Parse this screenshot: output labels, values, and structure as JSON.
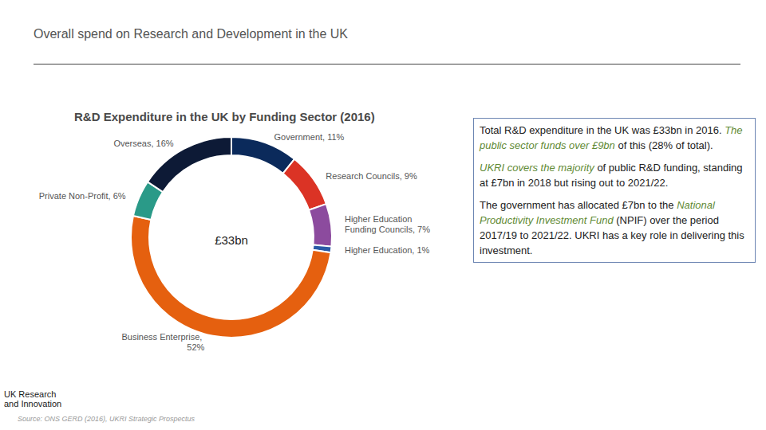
{
  "header": {
    "title": "Overall spend on Research and Development in the UK"
  },
  "chart_data": {
    "type": "pie",
    "donut": true,
    "title": "R&D Expenditure in the UK by Funding Sector (2016)",
    "center_label": "£33bn",
    "categories": [
      "Government",
      "Research Councils",
      "Higher Education Funding Councils",
      "Higher Education",
      "Business Enterprise",
      "Private Non-Profit",
      "Overseas"
    ],
    "values": [
      11,
      9,
      7,
      1,
      52,
      6,
      16
    ],
    "value_labels": [
      "Government, 11%",
      "Research Councils, 9%",
      "Higher Education Funding Councils, 7%",
      "Higher Education, 1%",
      "Business Enterprise, 52%",
      "Private Non-Profit, 6%",
      "Overseas, 16%"
    ],
    "colors": [
      "#0b2a5b",
      "#db3325",
      "#8c4b9e",
      "#2a5aa6",
      "#e5600f",
      "#2a9a88",
      "#0d1a36"
    ],
    "data_labels": true
  },
  "text_box": {
    "paragraphs": [
      [
        {
          "text": "Total R&D expenditure in the UK was £33bn in 2016. "
        },
        {
          "text": "The public sector funds over £9bn",
          "emphasis": true
        },
        {
          "text": " of this (28% of total)."
        }
      ],
      [
        {
          "text": "UKRI covers the majority",
          "emphasis": true
        },
        {
          "text": " of public R&D funding, standing at £7bn in 2018 but rising out to 2021/22."
        }
      ],
      [
        {
          "text": "The government has allocated £7bn to the "
        },
        {
          "text": "National Productivity Investment Fund",
          "emphasis": true
        },
        {
          "text": " (NPIF) over the period 2017/19 to 2021/22. UKRI has a key role in delivering this investment."
        }
      ]
    ]
  },
  "logo": [
    "UK Research",
    "and Innovation"
  ],
  "source": "Source: ONS GERD (2016), UKRI Strategic Prospectus"
}
